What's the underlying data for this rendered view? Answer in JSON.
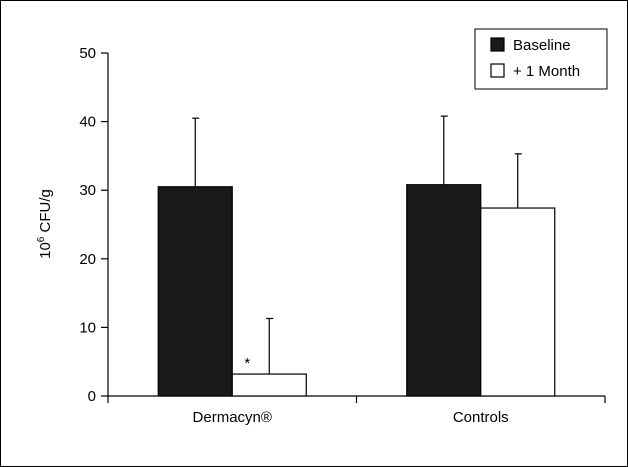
{
  "chart_data": {
    "type": "bar",
    "categories": [
      "Dermacyn®",
      "Controls"
    ],
    "series": [
      {
        "name": "Baseline",
        "values": [
          30.5,
          30.8
        ],
        "errors": [
          10.0,
          10.0
        ],
        "fill": "#1a1a1a"
      },
      {
        "name": "+ 1 Month",
        "values": [
          3.2,
          27.4
        ],
        "errors": [
          8.1,
          7.9
        ],
        "fill": "#ffffff"
      }
    ],
    "ylabel": "10",
    "ylabel_sup": "6",
    "ylabel_rest": " CFU/g",
    "ylim": [
      0,
      50
    ],
    "yticks": [
      "0",
      "10",
      "20",
      "30",
      "40",
      "50"
    ],
    "annotation": "*",
    "legend_position": "top-right",
    "grid": false
  }
}
